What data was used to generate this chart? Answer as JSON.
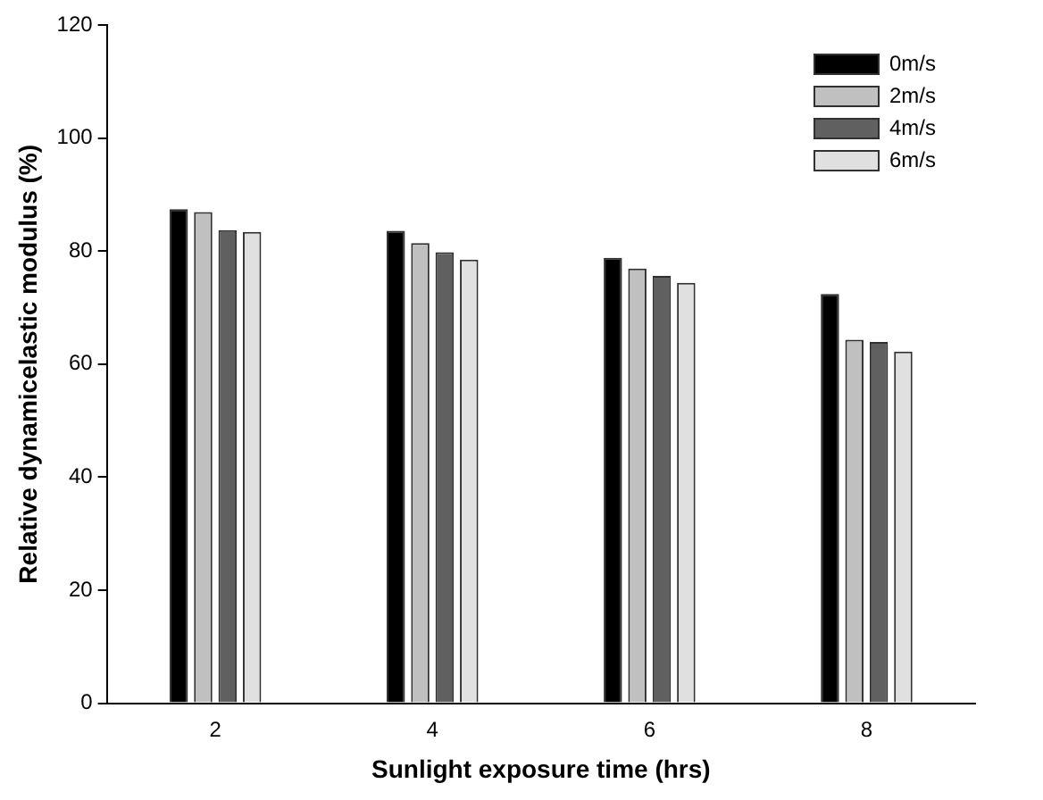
{
  "chart_data": {
    "type": "bar",
    "xlabel": "Sunlight exposure time (hrs)",
    "ylabel": "Relative dynamicelastic modulus (%)",
    "categories": [
      "2",
      "4",
      "6",
      "8"
    ],
    "series": [
      {
        "name": "0m/s",
        "color": "#000000",
        "values": [
          87.4,
          83.6,
          78.8,
          72.4
        ]
      },
      {
        "name": "2m/s",
        "color": "#c0c0c0",
        "values": [
          86.9,
          81.4,
          76.9,
          64.3
        ]
      },
      {
        "name": "4m/s",
        "color": "#606060",
        "values": [
          83.7,
          79.8,
          75.6,
          63.9
        ]
      },
      {
        "name": "6m/s",
        "color": "#e0e0e0",
        "values": [
          83.4,
          78.5,
          74.4,
          62.2
        ]
      }
    ],
    "ylim": [
      0,
      120
    ],
    "yticks": [
      0,
      20,
      40,
      60,
      80,
      100,
      120
    ],
    "grid": false,
    "legend": "top right"
  }
}
